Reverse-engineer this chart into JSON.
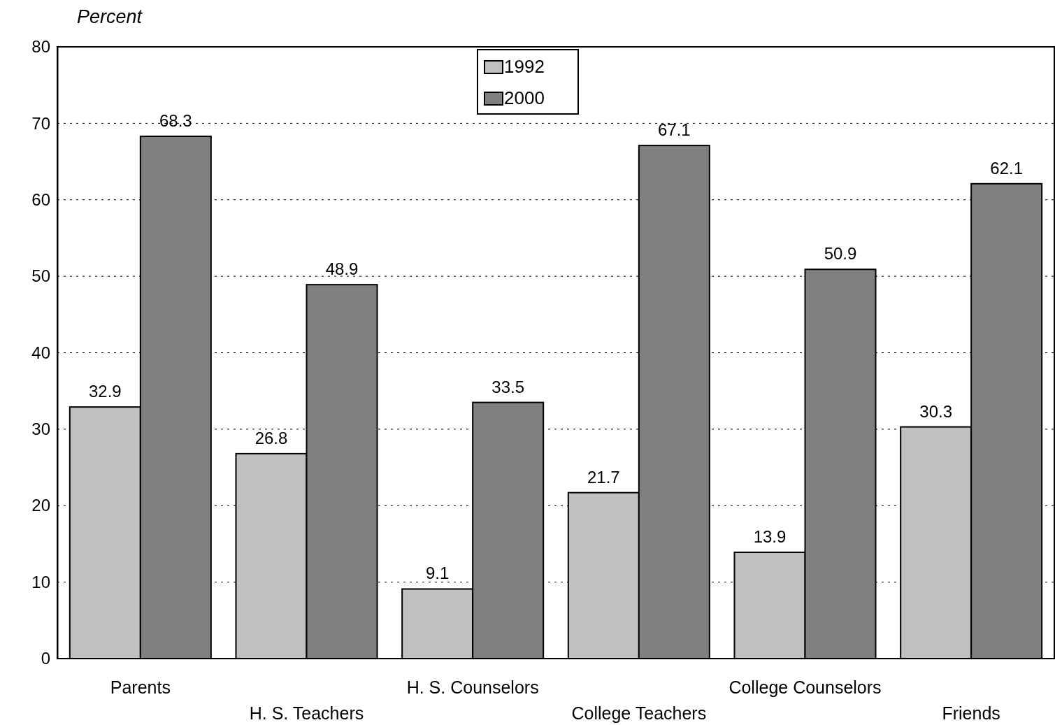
{
  "chart_data": {
    "type": "bar",
    "ylabel": "Percent",
    "categories": [
      "Parents",
      "H. S. Teachers",
      "H. S. Counselors",
      "College Teachers",
      "College Counselors",
      "Friends"
    ],
    "series": [
      {
        "name": "1992",
        "color": "#c0c0c0",
        "values": [
          32.9,
          26.8,
          9.1,
          21.7,
          13.9,
          30.3
        ]
      },
      {
        "name": "2000",
        "color": "#808080",
        "values": [
          68.3,
          48.9,
          33.5,
          67.1,
          50.9,
          62.1
        ]
      }
    ],
    "ylim": [
      0,
      80
    ],
    "yticks": [
      0,
      10,
      20,
      30,
      40,
      50,
      60,
      70,
      80
    ],
    "grid": "y",
    "legend": "top",
    "data_labels": true
  }
}
